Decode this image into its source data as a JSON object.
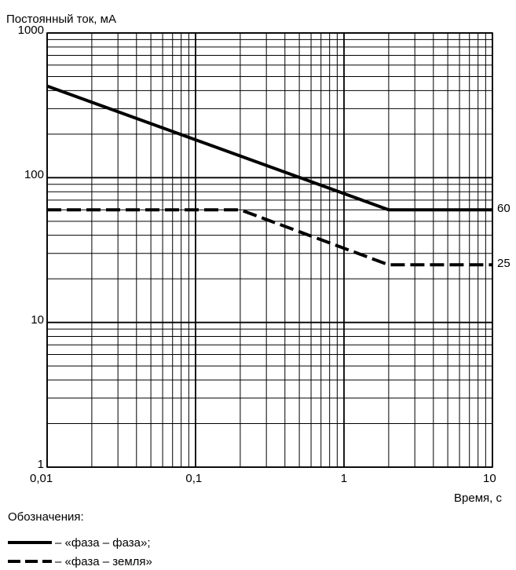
{
  "chart_data": {
    "type": "line",
    "title": "Постоянный ток, мА",
    "xlabel": "Время, с",
    "ylabel": "Постоянный ток, мА",
    "x_scale": "log",
    "y_scale": "log",
    "xlim": [
      0.01,
      10
    ],
    "ylim": [
      1,
      1000
    ],
    "grid": true,
    "x_ticks": [
      {
        "value": 0.01,
        "label": "0,01"
      },
      {
        "value": 0.1,
        "label": "0,1"
      },
      {
        "value": 1,
        "label": "1"
      },
      {
        "value": 10,
        "label": "10"
      }
    ],
    "y_ticks": [
      {
        "value": 1,
        "label": "1"
      },
      {
        "value": 10,
        "label": "10"
      },
      {
        "value": 100,
        "label": "100"
      },
      {
        "value": 1000,
        "label": "1000"
      }
    ],
    "series": [
      {
        "name": "«фаза – фаза»",
        "style": "solid",
        "points": [
          [
            0.01,
            430
          ],
          [
            2,
            60
          ],
          [
            10,
            60
          ]
        ],
        "end_label": "60"
      },
      {
        "name": "«фаза – земля»",
        "style": "dashed",
        "points": [
          [
            0.01,
            60
          ],
          [
            0.2,
            60
          ],
          [
            2,
            25
          ],
          [
            10,
            25
          ]
        ],
        "end_label": "25"
      }
    ]
  },
  "legend": {
    "heading": "Обозначения:",
    "items": [
      {
        "text": "– «фаза – фаза»;",
        "style": "solid"
      },
      {
        "text": "– «фаза – земля»",
        "style": "dashed"
      }
    ]
  }
}
